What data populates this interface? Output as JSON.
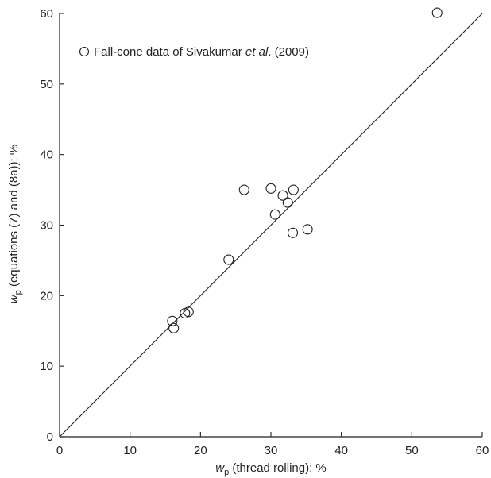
{
  "chart_data": {
    "type": "scatter",
    "xlabel": {
      "symbol": "w",
      "subscript": "p",
      "text": " (thread rolling): %"
    },
    "ylabel": {
      "symbol": "w",
      "subscript": "p",
      "text": " (equations (7) and (8a)): %"
    },
    "xlim": [
      0,
      60
    ],
    "ylim": [
      0,
      60
    ],
    "xticks": [
      0,
      10,
      20,
      30,
      40,
      50,
      60
    ],
    "yticks": [
      0,
      10,
      20,
      30,
      40,
      50,
      60
    ],
    "grid": false,
    "legend": {
      "position": "top-left",
      "prefix": "Fall-cone data of Sivakumar ",
      "italic": "et al",
      "suffix": ". (2009)"
    },
    "reference_line": {
      "type": "1:1 line",
      "from": [
        0,
        0
      ],
      "to": [
        60,
        60
      ]
    },
    "series": [
      {
        "marker": "open-circle",
        "points": [
          {
            "x": 16.0,
            "y": 16.4
          },
          {
            "x": 16.2,
            "y": 15.4
          },
          {
            "x": 17.8,
            "y": 17.5
          },
          {
            "x": 18.3,
            "y": 17.7
          },
          {
            "x": 24.0,
            "y": 25.1
          },
          {
            "x": 26.2,
            "y": 35.0
          },
          {
            "x": 30.0,
            "y": 35.2
          },
          {
            "x": 30.6,
            "y": 31.5
          },
          {
            "x": 31.7,
            "y": 34.2
          },
          {
            "x": 32.4,
            "y": 33.2
          },
          {
            "x": 33.1,
            "y": 28.9
          },
          {
            "x": 33.2,
            "y": 35.0
          },
          {
            "x": 35.2,
            "y": 29.4
          },
          {
            "x": 53.6,
            "y": 60.1
          }
        ]
      }
    ]
  },
  "colors": {
    "axis": "#231f20",
    "marker": "#231f20",
    "line": "#231f20"
  }
}
